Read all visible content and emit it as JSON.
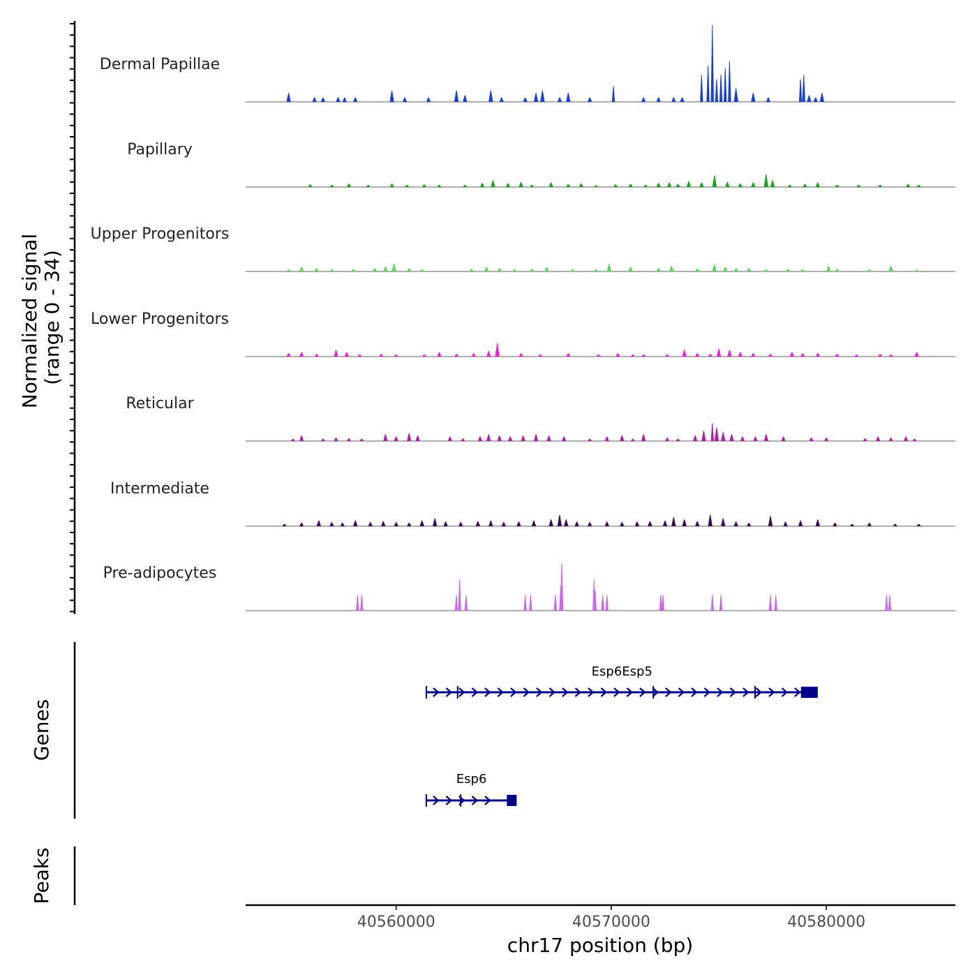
{
  "chart_data": {
    "type": "area",
    "title": "",
    "y_axis_title": "Normalized signal",
    "y_axis_subtitle": "(range 0 - 34)",
    "ylim": [
      0,
      34
    ],
    "x_axis_title": "chr17 position (bp)",
    "xlim": [
      40553000,
      40586000
    ],
    "x_ticks": [
      40560000,
      40570000,
      40580000
    ],
    "x_tick_labels": [
      "40560000",
      "40570000",
      "40580000"
    ],
    "tracks": [
      {
        "name": "Dermal Papillae",
        "color": "#1a3fd6",
        "x": [
          40555000,
          40556200,
          40556600,
          40557300,
          40557600,
          40558100,
          40559800,
          40560400,
          40561500,
          40562800,
          40563200,
          40564400,
          40564900,
          40566000,
          40566500,
          40566800,
          40567600,
          40568000,
          40569000,
          40570100,
          40571500,
          40572200,
          40572900,
          40573300,
          40574200,
          40574500,
          40574700,
          40574900,
          40575100,
          40575300,
          40575500,
          40575800,
          40576600,
          40577300,
          40578800,
          40578950,
          40579200,
          40579500,
          40579800
        ],
        "y": [
          4,
          2,
          2,
          2,
          2,
          2,
          5,
          2,
          2,
          5,
          3,
          5,
          2,
          2,
          4,
          5,
          2,
          4,
          2,
          7,
          2,
          2,
          2,
          2,
          12,
          16,
          34,
          10,
          12,
          15,
          18,
          6,
          4,
          2,
          10,
          12,
          3,
          2,
          4
        ]
      },
      {
        "name": "Papillary",
        "color": "#1aa31a",
        "x": [
          40556000,
          40557000,
          40557800,
          40558700,
          40559800,
          40560500,
          40561300,
          40562000,
          40563200,
          40564000,
          40564500,
          40565200,
          40565800,
          40566300,
          40567200,
          40568000,
          40568600,
          40569300,
          40570200,
          40570900,
          40571600,
          40572200,
          40572700,
          40573100,
          40573600,
          40574200,
          40574800,
          40575400,
          40576000,
          40576600,
          40577200,
          40577500,
          40578300,
          40579000,
          40579600,
          40580500,
          40581500,
          40582500,
          40583800,
          40584300
        ],
        "y": [
          1.2,
          1,
          1.5,
          1,
          1.5,
          1,
          1.2,
          1,
          1,
          1.8,
          3,
          1.6,
          2.2,
          1,
          2,
          1.3,
          1.6,
          0.8,
          1.2,
          1.4,
          1,
          1.8,
          2,
          1.4,
          2.6,
          2,
          5.2,
          2.2,
          1.5,
          2,
          5.6,
          3,
          1,
          1.4,
          2,
          1,
          1,
          1,
          1.4,
          1
        ]
      },
      {
        "name": "Upper Progenitors",
        "color": "#5cd65c",
        "x": [
          40555000,
          40555600,
          40556300,
          40557000,
          40558000,
          40559000,
          40559500,
          40559900,
          40560600,
          40561200,
          40563500,
          40564200,
          40564800,
          40565500,
          40566300,
          40567000,
          40568200,
          40569300,
          40569900,
          40570900,
          40572200,
          40572800,
          40574000,
          40574800,
          40575300,
          40575800,
          40576400,
          40577200,
          40578200,
          40578900,
          40580100,
          40580500,
          40582000,
          40583000,
          40584200
        ],
        "y": [
          1,
          2,
          1.5,
          1,
          1,
          1.5,
          2.2,
          3.5,
          1.5,
          1,
          1.2,
          2,
          1.5,
          1,
          1.2,
          2,
          1,
          1,
          3.5,
          2,
          1.5,
          2.5,
          1.4,
          3.2,
          2,
          1.5,
          1.5,
          1,
          1.2,
          1,
          2.5,
          1.2,
          1,
          2.6,
          0.8
        ]
      },
      {
        "name": "Lower Progenitors",
        "color": "#ee22dd",
        "x": [
          40555000,
          40555600,
          40556300,
          40557200,
          40557700,
          40558300,
          40559300,
          40560000,
          40561300,
          40562000,
          40562800,
          40563600,
          40564300,
          40564700,
          40565800,
          40566700,
          40568000,
          40569400,
          40570300,
          40571000,
          40571500,
          40572600,
          40573400,
          40574000,
          40574600,
          40575000,
          40575500,
          40576000,
          40576600,
          40577400,
          40578400,
          40578900,
          40579600,
          40580500,
          40581400,
          40582500,
          40583000,
          40584200
        ],
        "y": [
          1.5,
          2,
          1.2,
          3,
          2,
          1,
          1.2,
          1,
          1,
          2,
          1.2,
          1.5,
          2.5,
          6,
          1.5,
          1,
          1.5,
          1,
          1.5,
          1,
          1,
          1,
          3,
          1.5,
          1.2,
          3.5,
          3,
          2,
          1.5,
          1.2,
          2,
          1.5,
          1.6,
          1.2,
          1,
          1.2,
          1,
          2
        ]
      },
      {
        "name": "Reticular",
        "color": "#b01fa8",
        "x": [
          40555200,
          40555600,
          40556600,
          40557200,
          40557800,
          40558400,
          40559500,
          40560000,
          40560600,
          40561000,
          40562500,
          40563100,
          40563900,
          40564300,
          40564800,
          40565300,
          40565900,
          40566500,
          40567100,
          40567800,
          40569000,
          40569800,
          40570500,
          40571000,
          40571500,
          40572600,
          40573100,
          40573900,
          40574300,
          40574700,
          40574900,
          40575200,
          40575600,
          40576100,
          40576700,
          40577200,
          40578000,
          40579300,
          40580000,
          40581800,
          40582400,
          40583000,
          40583700,
          40584100
        ],
        "y": [
          1,
          2.5,
          1,
          1.5,
          1.2,
          1,
          3,
          2,
          3.5,
          2.5,
          2,
          1.2,
          2,
          3,
          2.5,
          2,
          2.5,
          3,
          2.5,
          2,
          1,
          2,
          2.5,
          1,
          3,
          1.5,
          1,
          2.5,
          4.5,
          8,
          6,
          4,
          3,
          2,
          2,
          3,
          2,
          1.5,
          1.5,
          1.2,
          2,
          1.5,
          2,
          1
        ]
      },
      {
        "name": "Intermediate",
        "color": "#3b0a55",
        "x": [
          40554800,
          40555600,
          40556400,
          40557000,
          40557500,
          40558100,
          40558800,
          40559400,
          40560000,
          40560600,
          40561200,
          40561800,
          40562300,
          40563000,
          40563800,
          40564400,
          40565000,
          40565700,
          40566400,
          40567200,
          40567600,
          40567900,
          40568400,
          40569000,
          40569800,
          40570500,
          40571200,
          40571800,
          40572500,
          40572900,
          40573400,
          40574000,
          40574600,
          40575200,
          40575800,
          40576400,
          40577400,
          40578100,
          40578800,
          40579600,
          40580400,
          40581200,
          40582000,
          40583200,
          40584300
        ],
        "y": [
          1,
          1.5,
          2.5,
          1.8,
          1.5,
          2.5,
          1.8,
          2.2,
          1.8,
          1.5,
          2.5,
          3.5,
          2,
          1.8,
          2.2,
          2.5,
          1.8,
          2,
          2.5,
          3,
          5,
          3,
          2,
          1.8,
          2,
          1.8,
          2,
          2.2,
          2.5,
          4,
          3,
          2.2,
          5,
          3.5,
          2,
          1.5,
          4.5,
          2,
          2.5,
          3,
          1.5,
          1,
          1.5,
          1,
          1
        ]
      },
      {
        "name": "Pre-adipocytes",
        "color": "#cc66ee",
        "x": [
          40558200,
          40558400,
          40562800,
          40562950,
          40563250,
          40566000,
          40566250,
          40567400,
          40567650,
          40567700,
          40569200,
          40569250,
          40569600,
          40569800,
          40572300,
          40572400,
          40574700,
          40575100,
          40577400,
          40577650,
          40582800,
          40582950
        ],
        "y": [
          7,
          7,
          7,
          14,
          7,
          7,
          7,
          7,
          11,
          21,
          14,
          9,
          7,
          7,
          7,
          7,
          7,
          7,
          7,
          7,
          7,
          7
        ]
      }
    ],
    "genes_track_label": "Genes",
    "genes": [
      {
        "name": "Esp6Esp5",
        "start": 40561400,
        "end": 40579600
      },
      {
        "name": "Esp6",
        "start": 40561400,
        "end": 40565600
      }
    ],
    "peaks_track_label": "Peaks",
    "peaks": []
  }
}
